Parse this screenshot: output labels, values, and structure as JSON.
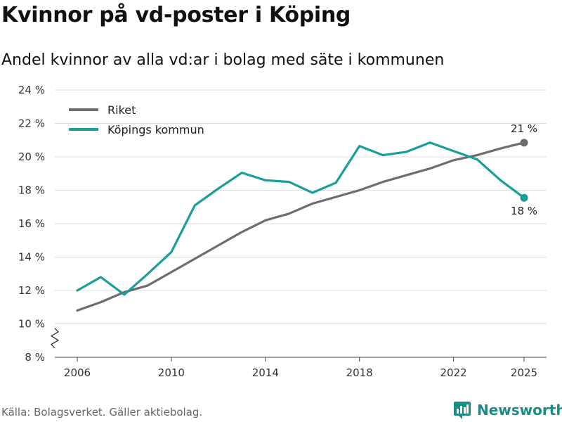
{
  "title": "Kvinnor på vd-poster i Köping",
  "subtitle": "Andel kvinnor av alla vd:ar i bolag med säte i kommunen",
  "source": "Källa: Bolagsverket. Gäller aktiebolag.",
  "brand": "Newsworthy",
  "colors": {
    "riket": "#6d6c71",
    "koping": "#1a9e99",
    "grid": "#dddddd",
    "brand": "#1a8c86"
  },
  "chart_data": {
    "type": "line",
    "title": "Kvinnor på vd-poster i Köping",
    "subtitle": "Andel kvinnor av alla vd:ar i bolag med säte i kommunen",
    "xlabel": "",
    "ylabel": "",
    "ylim": [
      8,
      24
    ],
    "y_ticks": [
      8,
      10,
      12,
      14,
      16,
      18,
      20,
      22,
      24
    ],
    "y_tick_labels": [
      "8 %",
      "10 %",
      "12 %",
      "14 %",
      "16 %",
      "18 %",
      "20 %",
      "22 %",
      "24 %"
    ],
    "x_ticks": [
      2006,
      2010,
      2014,
      2018,
      2022,
      2025
    ],
    "x_tick_labels": [
      "2006",
      "2010",
      "2014",
      "2018",
      "2022",
      "2025"
    ],
    "x": [
      2006,
      2007,
      2008,
      2009,
      2010,
      2011,
      2012,
      2013,
      2014,
      2015,
      2016,
      2017,
      2018,
      2019,
      2020,
      2021,
      2022,
      2023,
      2024,
      2025
    ],
    "series": [
      {
        "name": "Riket",
        "color": "#6d6c71",
        "values": [
          10.8,
          11.3,
          11.9,
          12.3,
          13.1,
          13.9,
          14.7,
          15.5,
          16.2,
          16.6,
          17.2,
          17.6,
          18.0,
          18.5,
          18.9,
          19.3,
          19.8,
          20.1,
          20.5,
          20.85
        ],
        "end_label": "21 %"
      },
      {
        "name": "Köpings kommun",
        "color": "#1a9e99",
        "values": [
          12.0,
          12.8,
          11.75,
          13.0,
          14.3,
          17.1,
          18.1,
          19.05,
          18.6,
          18.5,
          17.85,
          18.45,
          20.65,
          20.1,
          20.3,
          20.85,
          20.35,
          19.85,
          18.6,
          17.55
        ],
        "end_label": "18 %"
      }
    ],
    "legend_position": "top-left",
    "axis_break": true
  }
}
